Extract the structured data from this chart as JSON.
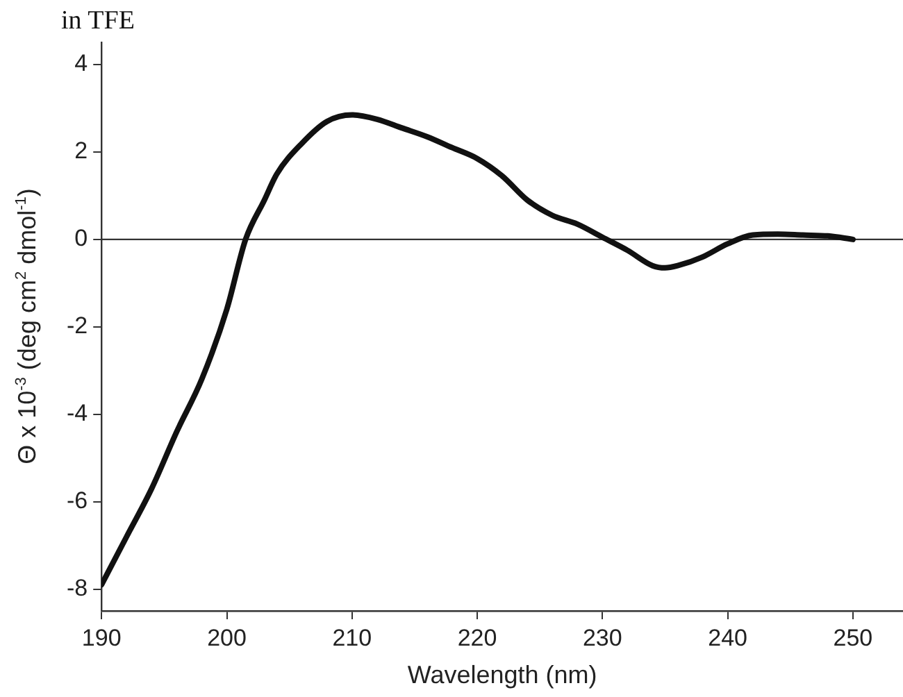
{
  "chart_data": {
    "type": "line",
    "title": "in TFE",
    "xlabel": "Wavelength (nm)",
    "ylabel": "Θ x 10$^{-3}$ (deg cm$^{2}$ dmol$^{-1}$)",
    "series": [
      {
        "color": "#111111",
        "x": [
          190,
          192,
          194,
          196,
          198,
          200,
          201.5,
          203,
          204,
          206,
          208,
          210,
          212,
          214,
          216,
          218,
          220,
          222,
          224,
          226,
          228,
          230,
          232,
          234,
          235,
          236,
          238,
          240,
          242,
          244,
          246,
          248,
          250
        ],
        "values": [
          -7.9,
          -6.8,
          -5.7,
          -4.4,
          -3.2,
          -1.6,
          0,
          0.9,
          1.5,
          2.2,
          2.7,
          2.85,
          2.75,
          2.55,
          2.35,
          2.1,
          1.85,
          1.45,
          0.9,
          0.55,
          0.35,
          0.05,
          -0.25,
          -0.6,
          -0.65,
          -0.6,
          -0.4,
          -0.1,
          0.1,
          0.12,
          0.1,
          0.08,
          0
        ]
      }
    ],
    "xlim": [
      190,
      254
    ],
    "xticks": [
      190,
      200,
      210,
      220,
      230,
      240,
      250
    ],
    "ylim": [
      -8.5,
      4.5
    ],
    "yticks": [
      -8,
      -6,
      -4,
      -2,
      0,
      2,
      4
    ],
    "ref_lines": [
      {
        "axis": "y",
        "value": 0,
        "color": "#333333"
      }
    ],
    "grid": false,
    "legend": false,
    "marker": "none",
    "line_style": "solid"
  }
}
